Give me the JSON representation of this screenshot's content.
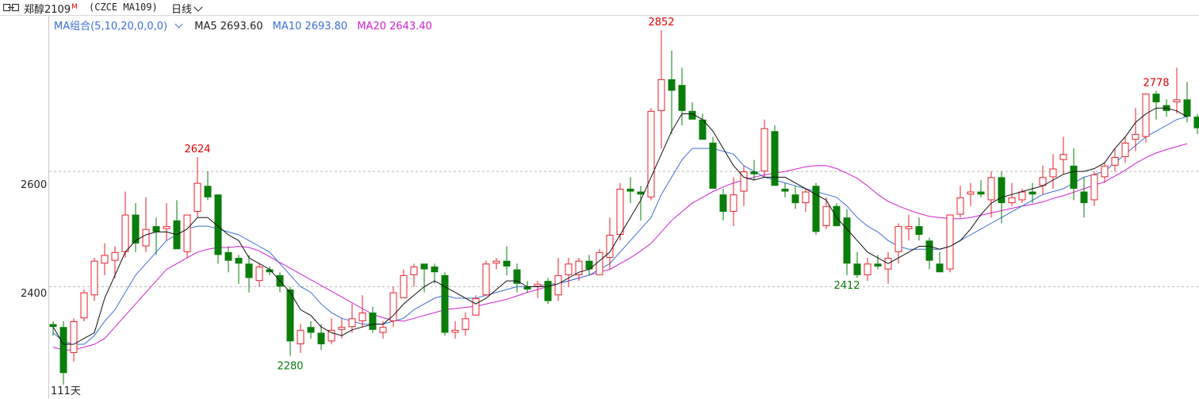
{
  "header": {
    "symbol_name": "郑醇2109",
    "symbol_superscript": "M",
    "symbol_code": "(CZCE MA109)",
    "period": "日线"
  },
  "legend": {
    "group_label": "MA组合(5,10,20,0,0,0)",
    "ma5": "MA5 2693.60",
    "ma10": "MA10 2693.80",
    "ma20": "MA20 2643.40"
  },
  "colors": {
    "up": "#e8202a",
    "down": "#0a7d0a",
    "ma5": "#111111",
    "ma10": "#3a6fd8",
    "ma20": "#d020d0",
    "high_label": "#e00000",
    "low_label": "#0a7d0a"
  },
  "axis": {
    "y_labels": [
      "2600",
      "2400"
    ],
    "day_count": "111天"
  },
  "chart_data": {
    "type": "candlestick",
    "ylim": [
      2205,
      2870
    ],
    "y_gridlines": [
      2600,
      2400
    ],
    "ohlc": [
      [
        2335,
        2340,
        2315,
        2330
      ],
      [
        2330,
        2340,
        2230,
        2250
      ],
      [
        2285,
        2345,
        2270,
        2340
      ],
      [
        2345,
        2395,
        2340,
        2390
      ],
      [
        2385,
        2450,
        2375,
        2445
      ],
      [
        2440,
        2475,
        2420,
        2455
      ],
      [
        2445,
        2470,
        2415,
        2460
      ],
      [
        2460,
        2565,
        2450,
        2525
      ],
      [
        2525,
        2545,
        2460,
        2475
      ],
      [
        2470,
        2555,
        2460,
        2500
      ],
      [
        2505,
        2520,
        2455,
        2495
      ],
      [
        2500,
        2545,
        2480,
        2505
      ],
      [
        2515,
        2550,
        2465,
        2465
      ],
      [
        2460,
        2525,
        2450,
        2525
      ],
      [
        2530,
        2625,
        2520,
        2580
      ],
      [
        2575,
        2600,
        2550,
        2555
      ],
      [
        2560,
        2560,
        2440,
        2455
      ],
      [
        2460,
        2470,
        2425,
        2445
      ],
      [
        2450,
        2455,
        2405,
        2440
      ],
      [
        2440,
        2455,
        2390,
        2415
      ],
      [
        2410,
        2440,
        2400,
        2435
      ],
      [
        2430,
        2435,
        2420,
        2425
      ],
      [
        2420,
        2425,
        2390,
        2400
      ],
      [
        2395,
        2400,
        2280,
        2305
      ],
      [
        2300,
        2335,
        2285,
        2325
      ],
      [
        2330,
        2340,
        2310,
        2320
      ],
      [
        2320,
        2335,
        2290,
        2300
      ],
      [
        2305,
        2345,
        2300,
        2325
      ],
      [
        2325,
        2345,
        2310,
        2330
      ],
      [
        2330,
        2370,
        2320,
        2345
      ],
      [
        2340,
        2385,
        2330,
        2355
      ],
      [
        2355,
        2365,
        2320,
        2325
      ],
      [
        2320,
        2340,
        2310,
        2330
      ],
      [
        2340,
        2400,
        2330,
        2390
      ],
      [
        2380,
        2430,
        2380,
        2420
      ],
      [
        2420,
        2440,
        2400,
        2435
      ],
      [
        2440,
        2440,
        2390,
        2430
      ],
      [
        2435,
        2440,
        2405,
        2425
      ],
      [
        2420,
        2425,
        2315,
        2320
      ],
      [
        2320,
        2340,
        2310,
        2325
      ],
      [
        2325,
        2355,
        2315,
        2345
      ],
      [
        2350,
        2385,
        2350,
        2380
      ],
      [
        2385,
        2445,
        2385,
        2440
      ],
      [
        2440,
        2450,
        2430,
        2445
      ],
      [
        2445,
        2470,
        2420,
        2435
      ],
      [
        2430,
        2440,
        2390,
        2405
      ],
      [
        2400,
        2410,
        2390,
        2395
      ],
      [
        2400,
        2410,
        2380,
        2405
      ],
      [
        2410,
        2415,
        2370,
        2375
      ],
      [
        2385,
        2450,
        2375,
        2420
      ],
      [
        2420,
        2450,
        2400,
        2440
      ],
      [
        2420,
        2450,
        2410,
        2445
      ],
      [
        2445,
        2455,
        2420,
        2430
      ],
      [
        2420,
        2465,
        2420,
        2460
      ],
      [
        2450,
        2520,
        2430,
        2490
      ],
      [
        2490,
        2580,
        2480,
        2570
      ],
      [
        2570,
        2590,
        2545,
        2565
      ],
      [
        2565,
        2575,
        2515,
        2560
      ],
      [
        2555,
        2710,
        2550,
        2705
      ],
      [
        2705,
        2845,
        2640,
        2760
      ],
      [
        2760,
        2810,
        2665,
        2740
      ],
      [
        2750,
        2780,
        2680,
        2705
      ],
      [
        2705,
        2720,
        2690,
        2690
      ],
      [
        2690,
        2700,
        2655,
        2655
      ],
      [
        2650,
        2660,
        2570,
        2570
      ],
      [
        2560,
        2570,
        2515,
        2530
      ],
      [
        2530,
        2590,
        2505,
        2560
      ],
      [
        2565,
        2610,
        2540,
        2600
      ],
      [
        2600,
        2620,
        2585,
        2595
      ],
      [
        2600,
        2690,
        2590,
        2675
      ],
      [
        2670,
        2680,
        2575,
        2575
      ],
      [
        2570,
        2580,
        2555,
        2565
      ],
      [
        2560,
        2575,
        2535,
        2545
      ],
      [
        2545,
        2570,
        2530,
        2565
      ],
      [
        2575,
        2580,
        2490,
        2495
      ],
      [
        2505,
        2555,
        2500,
        2540
      ],
      [
        2540,
        2545,
        2505,
        2505
      ],
      [
        2520,
        2535,
        2420,
        2440
      ],
      [
        2440,
        2460,
        2415,
        2420
      ],
      [
        2420,
        2450,
        2410,
        2440
      ],
      [
        2440,
        2455,
        2430,
        2435
      ],
      [
        2430,
        2460,
        2405,
        2450
      ],
      [
        2460,
        2510,
        2440,
        2505
      ],
      [
        2500,
        2525,
        2480,
        2505
      ],
      [
        2505,
        2520,
        2480,
        2490
      ],
      [
        2480,
        2485,
        2430,
        2445
      ],
      [
        2440,
        2460,
        2425,
        2425
      ],
      [
        2430,
        2520,
        2425,
        2525
      ],
      [
        2525,
        2575,
        2520,
        2555
      ],
      [
        2560,
        2580,
        2540,
        2565
      ],
      [
        2565,
        2585,
        2555,
        2560
      ],
      [
        2550,
        2600,
        2520,
        2590
      ],
      [
        2590,
        2600,
        2510,
        2545
      ],
      [
        2545,
        2580,
        2540,
        2555
      ],
      [
        2550,
        2570,
        2545,
        2565
      ],
      [
        2565,
        2580,
        2545,
        2560
      ],
      [
        2575,
        2610,
        2560,
        2590
      ],
      [
        2590,
        2630,
        2570,
        2605
      ],
      [
        2620,
        2660,
        2595,
        2630
      ],
      [
        2610,
        2640,
        2550,
        2570
      ],
      [
        2565,
        2590,
        2520,
        2545
      ],
      [
        2550,
        2600,
        2540,
        2595
      ],
      [
        2590,
        2615,
        2580,
        2610
      ],
      [
        2610,
        2640,
        2600,
        2625
      ],
      [
        2625,
        2660,
        2615,
        2650
      ],
      [
        2655,
        2710,
        2635,
        2665
      ],
      [
        2660,
        2735,
        2650,
        2735
      ],
      [
        2735,
        2740,
        2690,
        2720
      ],
      [
        2715,
        2725,
        2695,
        2705
      ],
      [
        2720,
        2780,
        2700,
        2725
      ],
      [
        2725,
        2755,
        2685,
        2695
      ],
      [
        2695,
        2700,
        2665,
        2675
      ],
      [
        2685,
        2690,
        2665,
        2670
      ]
    ],
    "ma5": [
      2330,
      2300,
      2300,
      2310,
      2320,
      2380,
      2420,
      2460,
      2480,
      2490,
      2495,
      2495,
      2490,
      2500,
      2520,
      2520,
      2505,
      2490,
      2480,
      2450,
      2440,
      2430,
      2410,
      2390,
      2360,
      2350,
      2330,
      2320,
      2315,
      2325,
      2330,
      2335,
      2335,
      2350,
      2370,
      2385,
      2400,
      2410,
      2400,
      2390,
      2380,
      2370,
      2380,
      2395,
      2410,
      2410,
      2400,
      2400,
      2400,
      2405,
      2415,
      2425,
      2430,
      2445,
      2460,
      2490,
      2520,
      2550,
      2590,
      2630,
      2670,
      2700,
      2700,
      2690,
      2670,
      2640,
      2610,
      2590,
      2585,
      2590,
      2590,
      2590,
      2580,
      2570,
      2560,
      2550,
      2520,
      2500,
      2480,
      2460,
      2450,
      2440,
      2450,
      2460,
      2470,
      2470,
      2465,
      2470,
      2480,
      2500,
      2525,
      2545,
      2555,
      2560,
      2565,
      2570,
      2575,
      2585,
      2595,
      2600,
      2600,
      2605,
      2615,
      2640,
      2660,
      2685,
      2700,
      2710,
      2710,
      2705,
      2695
    ],
    "ma10": [
      2320,
      2305,
      2300,
      2300,
      2315,
      2340,
      2360,
      2390,
      2420,
      2440,
      2460,
      2480,
      2490,
      2500,
      2505,
      2505,
      2500,
      2495,
      2490,
      2480,
      2470,
      2460,
      2440,
      2420,
      2400,
      2390,
      2370,
      2355,
      2345,
      2340,
      2335,
      2335,
      2335,
      2340,
      2345,
      2360,
      2370,
      2380,
      2385,
      2380,
      2380,
      2380,
      2385,
      2390,
      2395,
      2400,
      2400,
      2400,
      2405,
      2405,
      2410,
      2415,
      2420,
      2430,
      2440,
      2460,
      2480,
      2500,
      2520,
      2560,
      2590,
      2620,
      2640,
      2640,
      2640,
      2635,
      2630,
      2610,
      2600,
      2590,
      2585,
      2580,
      2575,
      2570,
      2565,
      2560,
      2555,
      2540,
      2520,
      2505,
      2495,
      2480,
      2470,
      2465,
      2465,
      2465,
      2465,
      2470,
      2480,
      2490,
      2500,
      2510,
      2520,
      2530,
      2540,
      2550,
      2560,
      2565,
      2570,
      2580,
      2590,
      2595,
      2600,
      2615,
      2630,
      2645,
      2660,
      2670,
      2680,
      2690,
      2695
    ],
    "ma20": [
      2295,
      2290,
      2290,
      2295,
      2300,
      2310,
      2330,
      2350,
      2370,
      2390,
      2410,
      2430,
      2440,
      2450,
      2460,
      2465,
      2468,
      2468,
      2470,
      2468,
      2462,
      2452,
      2442,
      2432,
      2422,
      2412,
      2402,
      2392,
      2382,
      2372,
      2362,
      2352,
      2346,
      2342,
      2340,
      2345,
      2350,
      2355,
      2360,
      2362,
      2364,
      2366,
      2370,
      2374,
      2378,
      2384,
      2390,
      2395,
      2400,
      2405,
      2410,
      2415,
      2420,
      2425,
      2430,
      2440,
      2450,
      2462,
      2475,
      2495,
      2515,
      2530,
      2545,
      2555,
      2565,
      2573,
      2580,
      2585,
      2590,
      2594,
      2597,
      2600,
      2604,
      2608,
      2610,
      2610,
      2605,
      2597,
      2588,
      2575,
      2560,
      2548,
      2540,
      2533,
      2527,
      2522,
      2520,
      2518,
      2518,
      2520,
      2524,
      2528,
      2532,
      2536,
      2540,
      2543,
      2547,
      2553,
      2558,
      2564,
      2570,
      2576,
      2582,
      2592,
      2602,
      2614,
      2624,
      2632,
      2638,
      2643,
      2648
    ],
    "annotations": {
      "high_1": {
        "text": "2624"
      },
      "low_1": {
        "text": "2280"
      },
      "high_2": {
        "text": "2852"
      },
      "low_2": {
        "text": "2412"
      },
      "high_3": {
        "text": "2778"
      }
    }
  }
}
